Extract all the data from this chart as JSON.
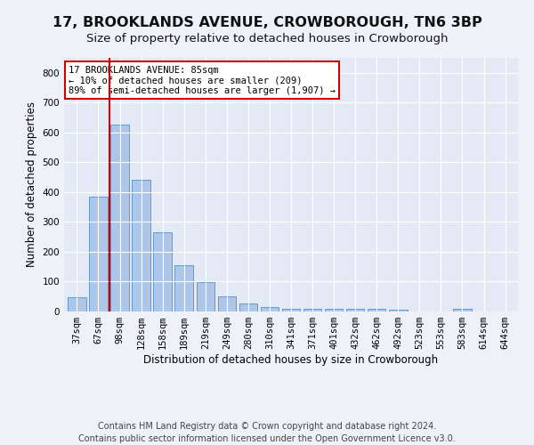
{
  "title": "17, BROOKLANDS AVENUE, CROWBOROUGH, TN6 3BP",
  "subtitle": "Size of property relative to detached houses in Crowborough",
  "xlabel": "Distribution of detached houses by size in Crowborough",
  "ylabel": "Number of detached properties",
  "categories": [
    "37sqm",
    "67sqm",
    "98sqm",
    "128sqm",
    "158sqm",
    "189sqm",
    "219sqm",
    "249sqm",
    "280sqm",
    "310sqm",
    "341sqm",
    "371sqm",
    "401sqm",
    "432sqm",
    "462sqm",
    "492sqm",
    "523sqm",
    "553sqm",
    "583sqm",
    "614sqm",
    "644sqm"
  ],
  "values": [
    47,
    385,
    625,
    440,
    265,
    155,
    97,
    52,
    27,
    16,
    10,
    10,
    10,
    10,
    10,
    5,
    0,
    0,
    8,
    0,
    0
  ],
  "bar_color": "#aec6e8",
  "bar_edge_color": "#5b9bd5",
  "vline_x": 1.5,
  "vline_color": "#cc0000",
  "annotation_text": "17 BROOKLANDS AVENUE: 85sqm\n← 10% of detached houses are smaller (209)\n89% of semi-detached houses are larger (1,907) →",
  "annotation_box_color": "#ffffff",
  "annotation_box_edge": "#cc0000",
  "ylim": [
    0,
    850
  ],
  "yticks": [
    0,
    100,
    200,
    300,
    400,
    500,
    600,
    700,
    800
  ],
  "footer": "Contains HM Land Registry data © Crown copyright and database right 2024.\nContains public sector information licensed under the Open Government Licence v3.0.",
  "bg_color": "#eef2f8",
  "plot_bg_color": "#e4eaf5",
  "grid_color": "#ffffff",
  "title_fontsize": 11.5,
  "subtitle_fontsize": 9.5,
  "axis_label_fontsize": 8.5,
  "tick_fontsize": 7.5,
  "footer_fontsize": 7.0
}
